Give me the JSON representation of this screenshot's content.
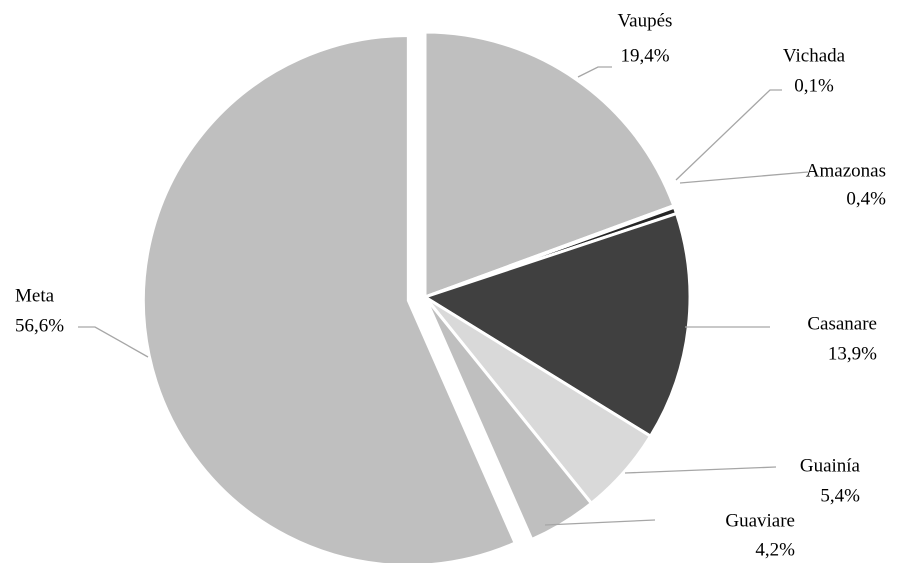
{
  "chart_data": {
    "type": "pie",
    "categories": [
      "Vaupés",
      "Vichada",
      "Amazonas",
      "Casanare",
      "Guainía",
      "Guaviare",
      "Meta"
    ],
    "values": [
      19.4,
      0.1,
      0.4,
      13.9,
      5.4,
      4.2,
      56.6
    ],
    "value_labels": [
      "19,4%",
      "0,1%",
      "0,4%",
      "13,9%",
      "5,4%",
      "4,2%",
      "56,6%"
    ],
    "colors": [
      "#bfbfbf",
      "#7f7f7f",
      "#262626",
      "#404040",
      "#d9d9d9",
      "#bfbfbf",
      "#bfbfbf"
    ],
    "exploded": [
      "Meta"
    ]
  }
}
